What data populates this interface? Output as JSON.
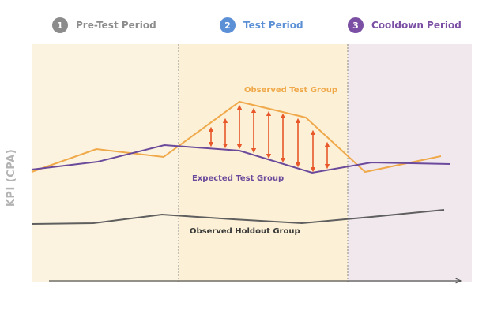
{
  "legend": [
    {
      "number": "1",
      "label": "Pre-Test Period",
      "color": "#8c8c8c"
    },
    {
      "number": "2",
      "label": "Test Period",
      "color": "#5b8fd6"
    },
    {
      "number": "3",
      "label": "Cooldown Period",
      "color": "#7b4fa3"
    }
  ],
  "y_axis_label": "KPI (CPA)",
  "series_labels": {
    "observed_test": "Observed Test Group",
    "expected_test": "Expected Test Group",
    "observed_holdout": "Observed Holdout Group"
  },
  "colors": {
    "pre_test_bg": "#fbf3df",
    "test_bg": "#fcf0d6",
    "cooldown_bg": "#f1e8ee",
    "observed_test": "#f0a94a",
    "expected_test": "#6b4a9c",
    "observed_holdout": "#5f5f5f",
    "arrow": "#e8582a",
    "divider": "#888888"
  }
}
